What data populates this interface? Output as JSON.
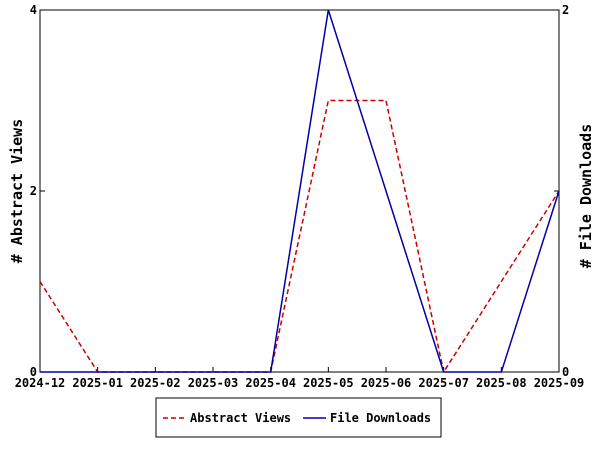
{
  "chart_data": {
    "type": "line",
    "x": [
      "2024-12",
      "2025-01",
      "2025-02",
      "2025-03",
      "2025-04",
      "2025-05",
      "2025-06",
      "2025-07",
      "2025-08",
      "2025-09"
    ],
    "series": [
      {
        "name": "Abstract Views",
        "axis": "left",
        "color": "#cc0000",
        "dash": "dashed",
        "values": [
          1,
          0,
          0,
          0,
          0,
          3,
          3,
          0,
          1,
          2
        ]
      },
      {
        "name": "File Downloads",
        "axis": "right",
        "color": "#0000aa",
        "dash": "solid",
        "values": [
          0,
          0,
          0,
          0,
          0,
          2,
          1,
          0,
          0,
          1
        ]
      }
    ],
    "ylabel_left": "# Abstract Views",
    "ylabel_right": "# File Downloads",
    "ylim_left": [
      0,
      4
    ],
    "ylim_right": [
      0,
      2
    ],
    "yticks_left": [
      0,
      2,
      4
    ],
    "yticks_right": [
      0,
      1,
      2
    ],
    "ytick_labels_right": [
      "0",
      "",
      "2"
    ],
    "grid": false,
    "legend_position": "bottom-center"
  }
}
